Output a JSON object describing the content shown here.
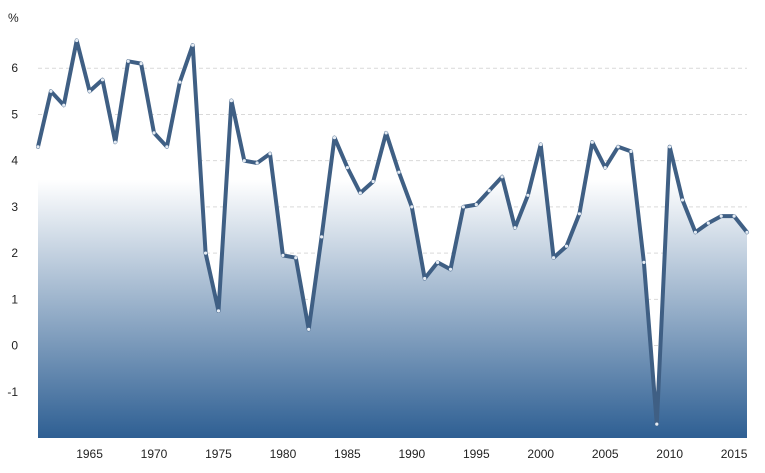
{
  "chart_data": {
    "type": "area",
    "unit_label": "%",
    "x_ticks": [
      1965,
      1970,
      1975,
      1980,
      1985,
      1990,
      1995,
      2000,
      2005,
      2010,
      2015
    ],
    "y_ticks": [
      -1,
      0,
      1,
      2,
      3,
      4,
      5,
      6
    ],
    "xlim": [
      1961,
      2016
    ],
    "ylim": [
      -2,
      7
    ],
    "grid": true,
    "colors": {
      "line": "#3f5f84",
      "fill_top": "#ffffff",
      "fill_bottom": "#2e5f93",
      "grid": "#d9d9d9"
    },
    "series": [
      {
        "x": [
          1961,
          1962,
          1963,
          1964,
          1965,
          1966,
          1967,
          1968,
          1969,
          1970,
          1971,
          1972,
          1973,
          1974,
          1975,
          1976,
          1977,
          1978,
          1979,
          1980,
          1981,
          1982,
          1983,
          1984,
          1985,
          1986,
          1987,
          1988,
          1989,
          1990,
          1991,
          1992,
          1993,
          1994,
          1995,
          1996,
          1997,
          1998,
          1999,
          2000,
          2001,
          2002,
          2003,
          2004,
          2005,
          2006,
          2007,
          2008,
          2009,
          2010,
          2011,
          2012,
          2013,
          2014,
          2015,
          2016
        ],
        "values": [
          4.3,
          5.5,
          5.2,
          6.6,
          5.5,
          5.75,
          4.4,
          6.15,
          6.1,
          4.6,
          4.3,
          5.7,
          6.5,
          2.0,
          0.75,
          5.3,
          4.0,
          3.95,
          4.15,
          1.95,
          1.9,
          0.35,
          2.35,
          4.5,
          3.85,
          3.3,
          3.55,
          4.6,
          3.75,
          3.0,
          1.45,
          1.8,
          1.65,
          3.0,
          3.05,
          3.35,
          3.65,
          2.55,
          3.25,
          4.35,
          1.9,
          2.15,
          2.85,
          4.4,
          3.85,
          4.3,
          4.2,
          1.8,
          -1.7,
          4.3,
          3.15,
          2.45,
          2.65,
          2.8,
          2.8,
          2.45
        ]
      }
    ]
  }
}
